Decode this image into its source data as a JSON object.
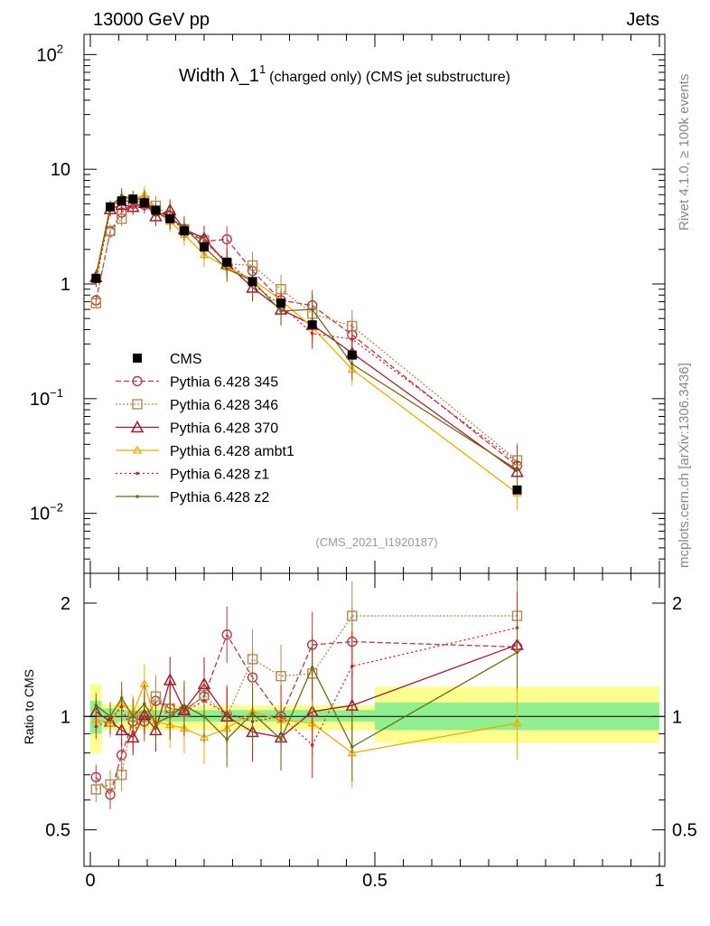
{
  "header": {
    "left": "13000 GeV pp",
    "right": "Jets"
  },
  "side_labels": {
    "top": "Rivet 4.1.0, ≥ 100k events",
    "bottom": "mcplots.cern.ch [arXiv:1306.3436]"
  },
  "watermark": "(CMS_2021_I1920187)",
  "colors": {
    "CMS": "#000000",
    "p345": "#b03a48",
    "p346": "#b08a50",
    "p370": "#9b1b30",
    "ambt1": "#f2a900",
    "z1": "#d42020",
    "z2": "#6b6b10",
    "band_inner": "#90f090",
    "band_outer": "#ffff90"
  },
  "chart_data": [
    {
      "type": "line",
      "title": "Width λ_1",
      "title_sup": "1",
      "subtitle": "(charged only) (CMS jet substructure)",
      "xlabel": "",
      "ylabel": "",
      "yscale": "log",
      "xlim": [
        0,
        1
      ],
      "ylim": [
        0.003,
        150
      ],
      "y_ticks": [
        {
          "value": 0.01,
          "base": "10",
          "exp": "−2"
        },
        {
          "value": 0.1,
          "base": "10",
          "exp": "−1"
        },
        {
          "value": 1,
          "base": "1",
          "exp": ""
        },
        {
          "value": 10,
          "base": "10",
          "exp": ""
        },
        {
          "value": 100,
          "base": "10",
          "exp": "2"
        }
      ],
      "legend_position": "left-middle",
      "legend": [
        {
          "key": "CMS",
          "label": "CMS"
        },
        {
          "key": "p345",
          "label": "Pythia 6.428 345"
        },
        {
          "key": "p346",
          "label": "Pythia 6.428 346"
        },
        {
          "key": "p370",
          "label": "Pythia 6.428 370"
        },
        {
          "key": "ambt1",
          "label": "Pythia 6.428 ambt1"
        },
        {
          "key": "z1",
          "label": "Pythia 6.428 z1"
        },
        {
          "key": "z2",
          "label": "Pythia 6.428 z2"
        }
      ],
      "x": [
        0.01,
        0.035,
        0.055,
        0.075,
        0.095,
        0.115,
        0.14,
        0.165,
        0.2,
        0.24,
        0.285,
        0.335,
        0.39,
        0.46,
        0.75
      ],
      "series": [
        {
          "key": "CMS",
          "name": "CMS",
          "values": [
            1.12,
            4.7,
            5.3,
            5.5,
            5.1,
            4.4,
            3.7,
            2.9,
            2.1,
            1.55,
            1.05,
            0.68,
            0.44,
            0.24,
            0.016
          ],
          "marker": "square-filled",
          "dash": ""
        },
        {
          "key": "p345",
          "name": "Pythia 6.428 345",
          "values": [
            0.72,
            2.85,
            4.2,
            5.0,
            4.9,
            4.3,
            3.9,
            3.0,
            2.35,
            2.45,
            1.3,
            0.72,
            0.65,
            0.36,
            0.026
          ],
          "marker": "circle-open",
          "dash": "6,3"
        },
        {
          "key": "p346",
          "name": "Pythia 6.428 346",
          "values": [
            0.68,
            2.9,
            3.7,
            5.2,
            5.3,
            4.8,
            3.9,
            3.0,
            2.4,
            1.5,
            1.45,
            0.9,
            0.55,
            0.43,
            0.029
          ],
          "marker": "square-open",
          "dash": "2,2"
        },
        {
          "key": "p370",
          "name": "Pythia 6.428 370",
          "values": [
            1.15,
            4.5,
            4.9,
            4.7,
            5.1,
            3.9,
            4.4,
            3.0,
            2.5,
            1.5,
            0.93,
            0.6,
            0.44,
            0.25,
            0.023
          ],
          "marker": "triangle-open",
          "dash": ""
        },
        {
          "key": "ambt1",
          "name": "Pythia 6.428 ambt1",
          "values": [
            1.1,
            4.6,
            5.7,
            5.4,
            6.0,
            4.3,
            3.5,
            2.7,
            1.8,
            1.4,
            1.1,
            0.72,
            0.42,
            0.18,
            0.015
          ],
          "marker": "triangle-small",
          "dash": ""
        },
        {
          "key": "z1",
          "name": "Pythia 6.428 z1",
          "values": [
            1.05,
            4.4,
            5.6,
            5.0,
            5.2,
            4.2,
            3.7,
            3.0,
            2.3,
            1.6,
            1.0,
            0.65,
            0.37,
            0.33,
            0.028
          ],
          "marker": "dot",
          "dash": "2,3"
        },
        {
          "key": "z2",
          "name": "Pythia 6.428 z2",
          "values": [
            1.2,
            4.7,
            5.9,
            5.5,
            5.5,
            4.2,
            3.7,
            3.1,
            2.1,
            1.35,
            1.07,
            0.58,
            0.6,
            0.2,
            0.024
          ],
          "marker": "dot",
          "dash": ""
        }
      ]
    },
    {
      "type": "line",
      "title": "",
      "xlabel": "",
      "ylabel": "Ratio to CMS",
      "yscale": "log",
      "xlim": [
        0,
        1
      ],
      "ylim": [
        0.4,
        2.4
      ],
      "x_ticks": [
        {
          "value": 0,
          "label": "0"
        },
        {
          "value": 0.5,
          "label": "0.5"
        },
        {
          "value": 1,
          "label": "1"
        }
      ],
      "y_ticks": [
        {
          "value": 0.5,
          "label": "0.5"
        },
        {
          "value": 1,
          "label": "1"
        },
        {
          "value": 2,
          "label": "2"
        }
      ],
      "bins": [
        [
          0,
          0.02
        ],
        [
          0.02,
          0.05
        ],
        [
          0.05,
          0.5
        ],
        [
          0.5,
          1
        ]
      ],
      "band_inner": [
        [
          0.9,
          1.1
        ],
        [
          0.96,
          1.05
        ],
        [
          0.97,
          1.04
        ],
        [
          0.92,
          1.09
        ]
      ],
      "band_outer": [
        [
          0.8,
          1.22
        ],
        [
          0.92,
          1.08
        ],
        [
          0.92,
          1.07
        ],
        [
          0.85,
          1.2
        ]
      ],
      "x": [
        0.01,
        0.035,
        0.055,
        0.075,
        0.095,
        0.115,
        0.14,
        0.165,
        0.2,
        0.24,
        0.285,
        0.335,
        0.39,
        0.46,
        0.75
      ],
      "series": [
        {
          "key": "p345",
          "name": "Pythia 6.428 345",
          "values": [
            0.69,
            0.62,
            0.79,
            0.97,
            0.97,
            1.1,
            1.05,
            1.04,
            1.13,
            1.65,
            1.27,
            1.0,
            1.55,
            1.58,
            1.53
          ]
        },
        {
          "key": "p346",
          "name": "Pythia 6.428 346",
          "values": [
            0.64,
            0.66,
            0.7,
            1.0,
            1.0,
            1.13,
            1.05,
            1.03,
            1.14,
            1.0,
            1.42,
            1.28,
            1.3,
            1.85,
            1.85
          ]
        },
        {
          "key": "p370",
          "name": "Pythia 6.428 370",
          "values": [
            1.03,
            0.97,
            0.92,
            0.88,
            1.01,
            0.92,
            1.25,
            1.04,
            1.22,
            1.0,
            0.91,
            0.88,
            1.03,
            1.07,
            1.55
          ]
        },
        {
          "key": "ambt1",
          "name": "Pythia 6.428 ambt1",
          "values": [
            0.98,
            0.96,
            1.08,
            1.02,
            1.22,
            0.97,
            0.95,
            0.93,
            0.88,
            0.93,
            1.03,
            0.98,
            0.96,
            0.8,
            0.96
          ]
        },
        {
          "key": "z1",
          "name": "Pythia 6.428 z1",
          "values": [
            0.94,
            0.98,
            1.06,
            0.9,
            1.03,
            0.96,
            1.0,
            1.03,
            1.1,
            1.02,
            0.97,
            1.0,
            0.84,
            1.36,
            1.72
          ]
        },
        {
          "key": "z2",
          "name": "Pythia 6.428 z2",
          "values": [
            1.07,
            1.0,
            1.12,
            1.0,
            1.08,
            0.96,
            1.0,
            1.07,
            1.0,
            0.87,
            1.02,
            0.87,
            1.35,
            0.83,
            1.48
          ]
        }
      ]
    }
  ]
}
